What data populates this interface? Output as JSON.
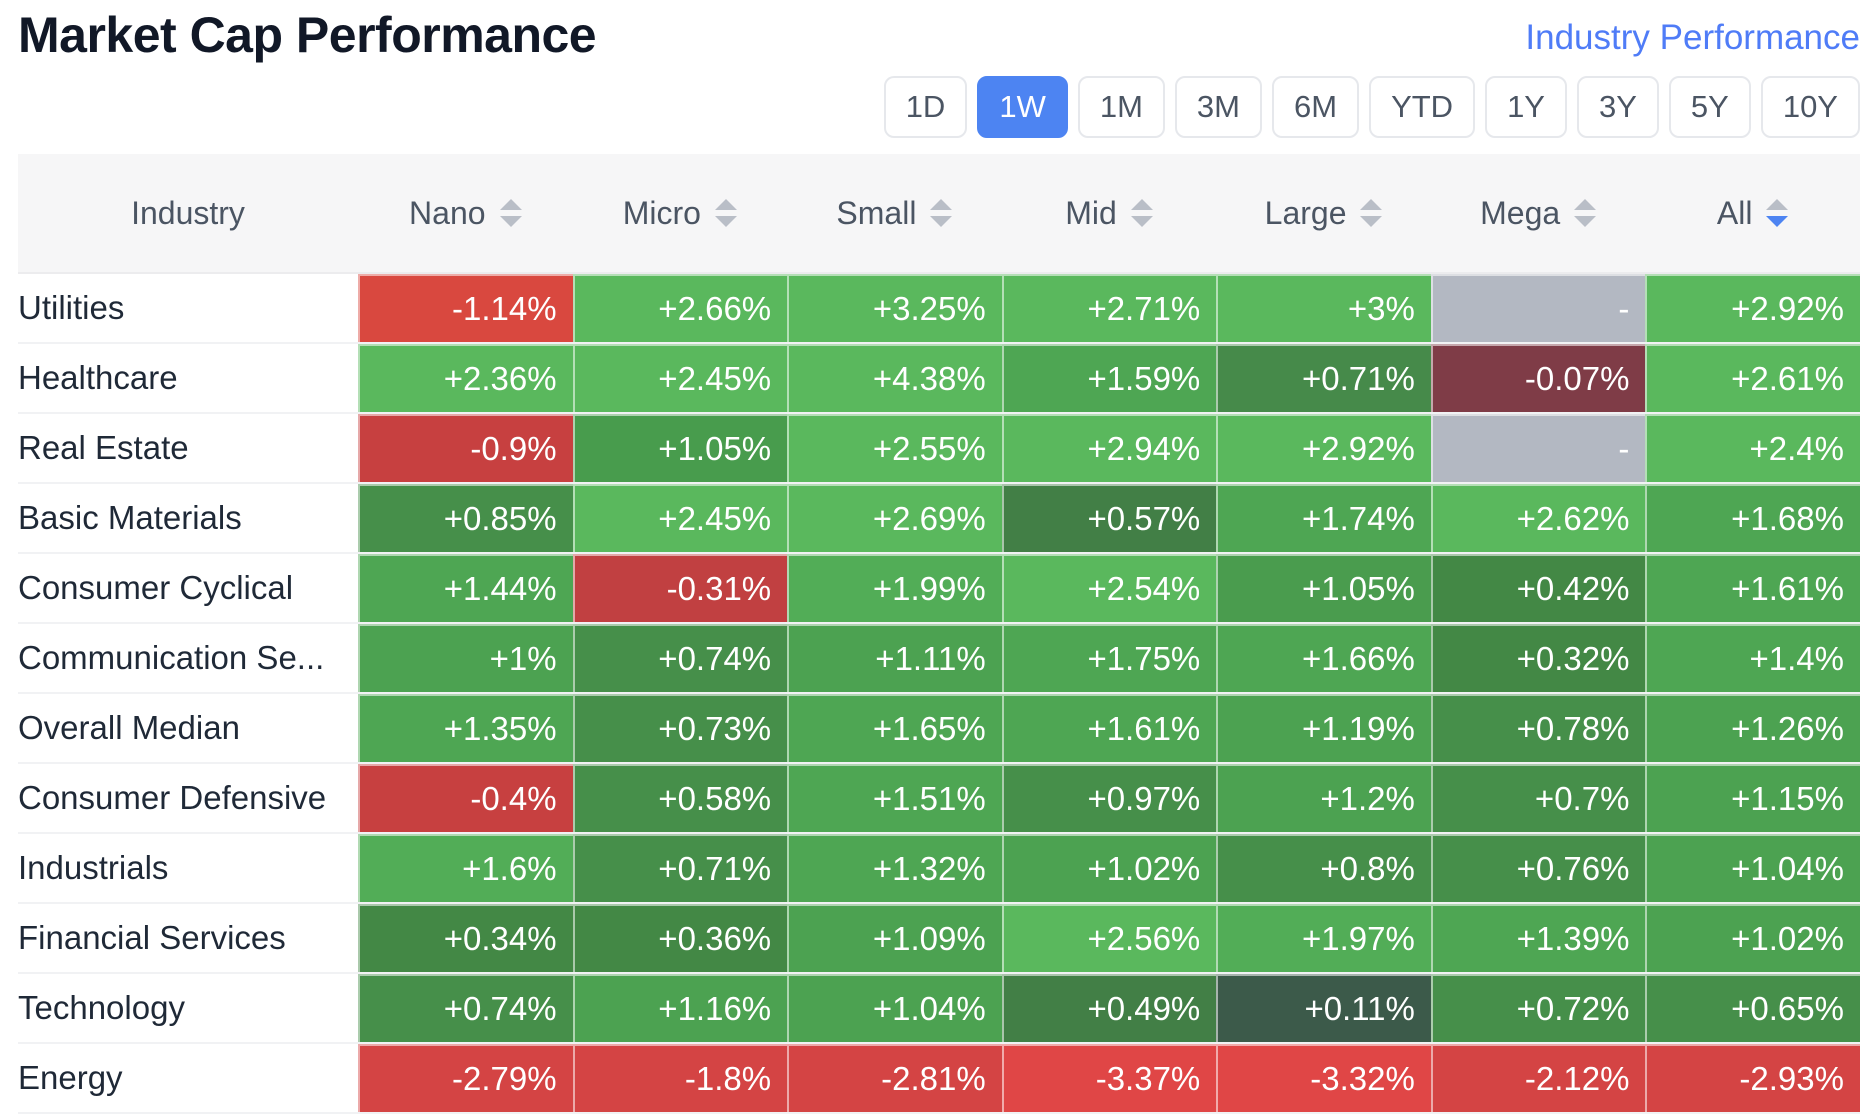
{
  "header": {
    "title": "Market Cap Performance",
    "link": "Industry Performance"
  },
  "periods": [
    "1D",
    "1W",
    "1M",
    "3M",
    "6M",
    "YTD",
    "1Y",
    "3Y",
    "5Y",
    "10Y"
  ],
  "active_period": "1W",
  "table": {
    "columns": [
      "Industry",
      "Nano",
      "Micro",
      "Small",
      "Mid",
      "Large",
      "Mega",
      "All"
    ],
    "sorted_column": "All",
    "rows": [
      {
        "industry": "Utilities",
        "cells": [
          {
            "text": "-1.14%",
            "color": "#d9483f"
          },
          {
            "text": "+2.66%",
            "color": "#5ab85d"
          },
          {
            "text": "+3.25%",
            "color": "#5ab85d"
          },
          {
            "text": "+2.71%",
            "color": "#5ab85d"
          },
          {
            "text": "+3%",
            "color": "#5ab85d"
          },
          {
            "text": "-",
            "color": "#b3b8c2"
          },
          {
            "text": "+2.92%",
            "color": "#5ab85d"
          }
        ]
      },
      {
        "industry": "Healthcare",
        "cells": [
          {
            "text": "+2.36%",
            "color": "#5ab85d"
          },
          {
            "text": "+2.45%",
            "color": "#5ab85d"
          },
          {
            "text": "+4.38%",
            "color": "#5ab85d"
          },
          {
            "text": "+1.59%",
            "color": "#4ea653"
          },
          {
            "text": "+0.71%",
            "color": "#468a4a"
          },
          {
            "text": "-0.07%",
            "color": "#7f3c47"
          },
          {
            "text": "+2.61%",
            "color": "#5ab85d"
          }
        ]
      },
      {
        "industry": "Real Estate",
        "cells": [
          {
            "text": "-0.9%",
            "color": "#c74040"
          },
          {
            "text": "+1.05%",
            "color": "#489c4d"
          },
          {
            "text": "+2.55%",
            "color": "#5ab85d"
          },
          {
            "text": "+2.94%",
            "color": "#5ab85d"
          },
          {
            "text": "+2.92%",
            "color": "#5ab85d"
          },
          {
            "text": "-",
            "color": "#b3b8c2"
          },
          {
            "text": "+2.4%",
            "color": "#5ab85d"
          }
        ]
      },
      {
        "industry": "Basic Materials",
        "cells": [
          {
            "text": "+0.85%",
            "color": "#468f4a"
          },
          {
            "text": "+2.45%",
            "color": "#5ab85d"
          },
          {
            "text": "+2.69%",
            "color": "#5ab85d"
          },
          {
            "text": "+0.57%",
            "color": "#427f46"
          },
          {
            "text": "+1.74%",
            "color": "#4ea653"
          },
          {
            "text": "+2.62%",
            "color": "#5ab85d"
          },
          {
            "text": "+1.68%",
            "color": "#4ea653"
          }
        ]
      },
      {
        "industry": "Consumer Cyclical",
        "cells": [
          {
            "text": "+1.44%",
            "color": "#4ea653"
          },
          {
            "text": "-0.31%",
            "color": "#c14041"
          },
          {
            "text": "+1.99%",
            "color": "#52ad57"
          },
          {
            "text": "+2.54%",
            "color": "#5ab85d"
          },
          {
            "text": "+1.05%",
            "color": "#4a9c4e"
          },
          {
            "text": "+0.42%",
            "color": "#438845"
          },
          {
            "text": "+1.61%",
            "color": "#4ea653"
          }
        ]
      },
      {
        "industry": "Communication Se...",
        "cells": [
          {
            "text": "+1%",
            "color": "#4ca251"
          },
          {
            "text": "+0.74%",
            "color": "#468f4a"
          },
          {
            "text": "+1.11%",
            "color": "#4ca251"
          },
          {
            "text": "+1.75%",
            "color": "#4ea653"
          },
          {
            "text": "+1.66%",
            "color": "#4ea653"
          },
          {
            "text": "+0.32%",
            "color": "#438845"
          },
          {
            "text": "+1.4%",
            "color": "#4ea653"
          }
        ]
      },
      {
        "industry": "Overall Median",
        "cells": [
          {
            "text": "+1.35%",
            "color": "#4ea653"
          },
          {
            "text": "+0.73%",
            "color": "#468f4a"
          },
          {
            "text": "+1.65%",
            "color": "#4ea653"
          },
          {
            "text": "+1.61%",
            "color": "#4ea653"
          },
          {
            "text": "+1.19%",
            "color": "#4ca251"
          },
          {
            "text": "+0.78%",
            "color": "#468f4a"
          },
          {
            "text": "+1.26%",
            "color": "#4ca251"
          }
        ]
      },
      {
        "industry": "Consumer Defensive",
        "cells": [
          {
            "text": "-0.4%",
            "color": "#c74040"
          },
          {
            "text": "+0.58%",
            "color": "#468f4a"
          },
          {
            "text": "+1.51%",
            "color": "#4ea653"
          },
          {
            "text": "+0.97%",
            "color": "#468f4a"
          },
          {
            "text": "+1.2%",
            "color": "#4ca251"
          },
          {
            "text": "+0.7%",
            "color": "#468f4a"
          },
          {
            "text": "+1.15%",
            "color": "#4ca251"
          }
        ]
      },
      {
        "industry": "Industrials",
        "cells": [
          {
            "text": "+1.6%",
            "color": "#52ad57"
          },
          {
            "text": "+0.71%",
            "color": "#468f4a"
          },
          {
            "text": "+1.32%",
            "color": "#4ea653"
          },
          {
            "text": "+1.02%",
            "color": "#4ca251"
          },
          {
            "text": "+0.8%",
            "color": "#468f4a"
          },
          {
            "text": "+0.76%",
            "color": "#468f4a"
          },
          {
            "text": "+1.04%",
            "color": "#4ca251"
          }
        ]
      },
      {
        "industry": "Financial Services",
        "cells": [
          {
            "text": "+0.34%",
            "color": "#438845"
          },
          {
            "text": "+0.36%",
            "color": "#438845"
          },
          {
            "text": "+1.09%",
            "color": "#4ca251"
          },
          {
            "text": "+2.56%",
            "color": "#5ab85d"
          },
          {
            "text": "+1.97%",
            "color": "#52ad57"
          },
          {
            "text": "+1.39%",
            "color": "#4ea653"
          },
          {
            "text": "+1.02%",
            "color": "#4ca251"
          }
        ]
      },
      {
        "industry": "Technology",
        "cells": [
          {
            "text": "+0.74%",
            "color": "#468f4a"
          },
          {
            "text": "+1.16%",
            "color": "#4ca251"
          },
          {
            "text": "+1.04%",
            "color": "#4ca251"
          },
          {
            "text": "+0.49%",
            "color": "#427f46"
          },
          {
            "text": "+0.11%",
            "color": "#3c5a4a"
          },
          {
            "text": "+0.72%",
            "color": "#468f4a"
          },
          {
            "text": "+0.65%",
            "color": "#468f4a"
          }
        ]
      },
      {
        "industry": "Energy",
        "cells": [
          {
            "text": "-2.79%",
            "color": "#d44444"
          },
          {
            "text": "-1.8%",
            "color": "#d44444"
          },
          {
            "text": "-2.81%",
            "color": "#d44444"
          },
          {
            "text": "-3.37%",
            "color": "#e04646"
          },
          {
            "text": "-3.32%",
            "color": "#e04646"
          },
          {
            "text": "-2.12%",
            "color": "#d44444"
          },
          {
            "text": "-2.93%",
            "color": "#d44444"
          }
        ]
      }
    ]
  }
}
